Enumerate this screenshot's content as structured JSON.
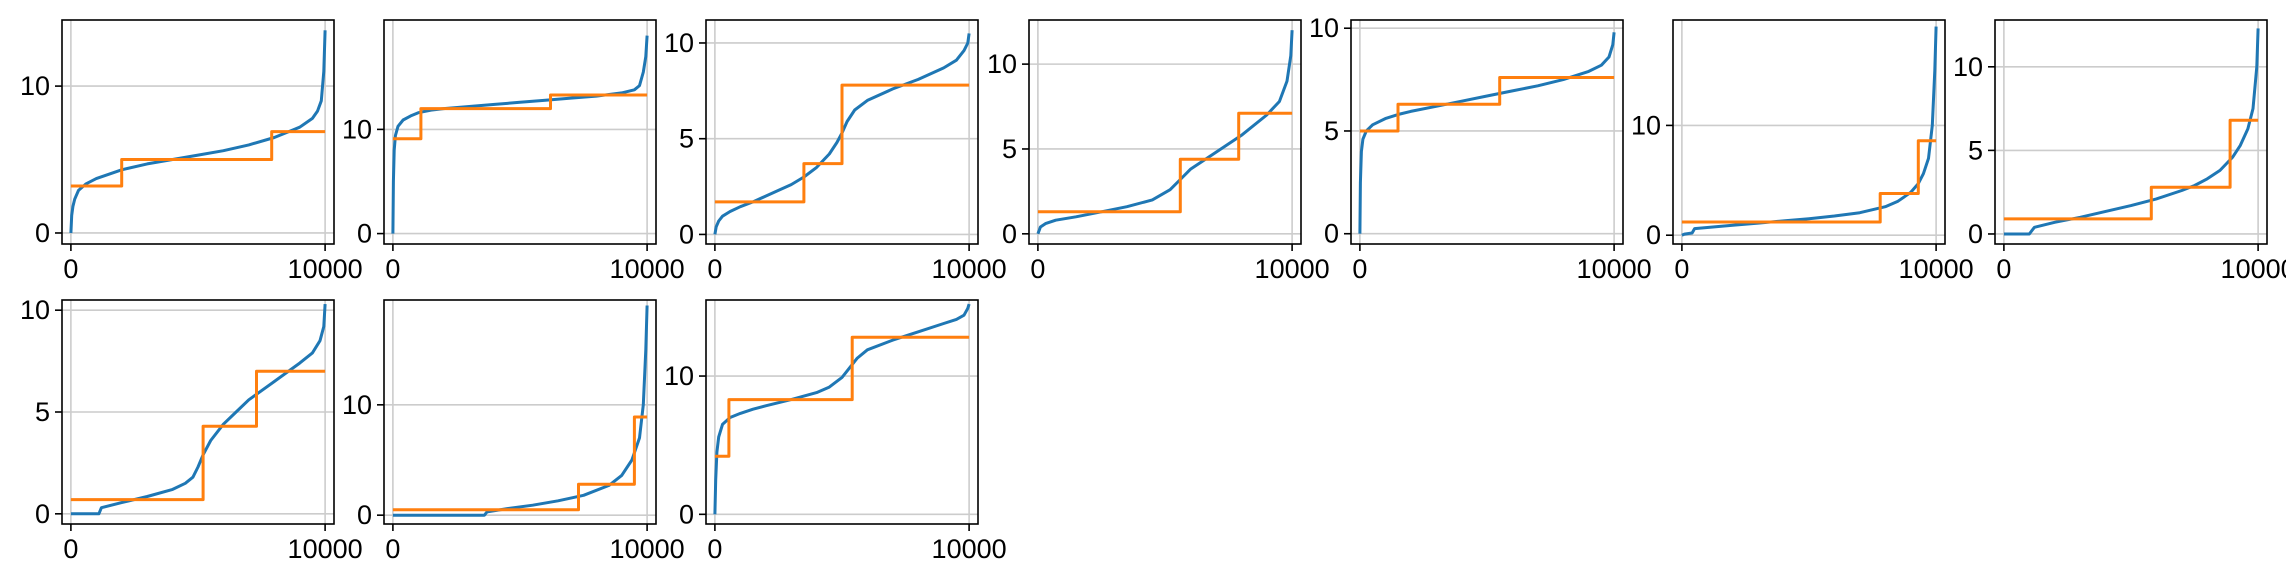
{
  "chart_data": [
    {
      "type": "line",
      "xlim": [
        -350,
        10350
      ],
      "ylim": [
        -0.75,
        14.5
      ],
      "xticks": [
        0,
        10000
      ],
      "xtick_labels": [
        "0",
        "10000"
      ],
      "yticks": [
        0,
        10
      ],
      "ytick_labels": [
        "0",
        "10"
      ],
      "grid": true,
      "series": [
        {
          "color": "#1f77b4",
          "step": false,
          "x": [
            0,
            30,
            80,
            150,
            300,
            600,
            1000,
            1500,
            2000,
            3000,
            4000,
            5000,
            6000,
            7000,
            8000,
            9000,
            9500,
            9700,
            9850,
            9950,
            10000
          ],
          "y": [
            0,
            1.2,
            1.8,
            2.3,
            2.9,
            3.35,
            3.7,
            4.0,
            4.3,
            4.7,
            5.0,
            5.3,
            5.6,
            6.0,
            6.5,
            7.2,
            7.8,
            8.3,
            9.0,
            11.0,
            13.8
          ]
        },
        {
          "color": "#ff7f0e",
          "step": true,
          "x": [
            0,
            2000,
            7900,
            10000
          ],
          "y": [
            3.2,
            5.0,
            6.9,
            6.9
          ]
        }
      ]
    },
    {
      "type": "line",
      "xlim": [
        -350,
        10350
      ],
      "ylim": [
        -1,
        20.5
      ],
      "xticks": [
        0,
        10000
      ],
      "xtick_labels": [
        "0",
        "10000"
      ],
      "yticks": [
        0,
        10
      ],
      "ytick_labels": [
        "0",
        "10"
      ],
      "grid": true,
      "series": [
        {
          "color": "#1f77b4",
          "step": false,
          "x": [
            0,
            20,
            50,
            100,
            200,
            400,
            700,
            1000,
            1500,
            2000,
            3000,
            4000,
            5000,
            6000,
            7000,
            8000,
            9000,
            9500,
            9700,
            9850,
            9950,
            10000
          ],
          "y": [
            0,
            5,
            8,
            9.4,
            10.3,
            10.9,
            11.3,
            11.6,
            11.85,
            12.0,
            12.2,
            12.4,
            12.6,
            12.8,
            13.0,
            13.2,
            13.5,
            13.8,
            14.2,
            15.5,
            17.0,
            19.0
          ]
        },
        {
          "color": "#ff7f0e",
          "step": true,
          "x": [
            0,
            1100,
            6200,
            10000
          ],
          "y": [
            9.1,
            12.0,
            13.3,
            13.3
          ]
        }
      ]
    },
    {
      "type": "line",
      "xlim": [
        -350,
        10350
      ],
      "ylim": [
        -0.5,
        11.2
      ],
      "xticks": [
        0,
        10000
      ],
      "xtick_labels": [
        "0",
        "10000"
      ],
      "yticks": [
        0,
        5,
        10
      ],
      "ytick_labels": [
        "0",
        "5",
        "10"
      ],
      "grid": true,
      "series": [
        {
          "color": "#1f77b4",
          "step": false,
          "x": [
            0,
            50,
            150,
            300,
            600,
            1000,
            1500,
            2000,
            2500,
            3000,
            3500,
            4000,
            4500,
            4800,
            5000,
            5200,
            5500,
            6000,
            7000,
            8000,
            9000,
            9500,
            9800,
            9950,
            10000
          ],
          "y": [
            0,
            0.4,
            0.7,
            0.95,
            1.2,
            1.45,
            1.7,
            2.0,
            2.3,
            2.6,
            3.0,
            3.5,
            4.2,
            4.8,
            5.3,
            5.9,
            6.5,
            7.0,
            7.6,
            8.1,
            8.7,
            9.1,
            9.6,
            10.0,
            10.5
          ]
        },
        {
          "color": "#ff7f0e",
          "step": true,
          "x": [
            0,
            3500,
            5000,
            10000
          ],
          "y": [
            1.7,
            3.7,
            7.8,
            7.8
          ]
        }
      ]
    },
    {
      "type": "line",
      "xlim": [
        -350,
        10350
      ],
      "ylim": [
        -0.6,
        12.6
      ],
      "xticks": [
        0,
        10000
      ],
      "xtick_labels": [
        "0",
        "10000"
      ],
      "yticks": [
        0,
        5,
        10
      ],
      "ytick_labels": [
        "0",
        "5",
        "10"
      ],
      "grid": true,
      "series": [
        {
          "color": "#1f77b4",
          "step": false,
          "x": [
            0,
            50,
            100,
            300,
            700,
            1500,
            2500,
            3500,
            4500,
            5200,
            5600,
            6000,
            7000,
            8000,
            9000,
            9500,
            9800,
            9950,
            10000
          ],
          "y": [
            0,
            0.2,
            0.4,
            0.6,
            0.8,
            1.0,
            1.3,
            1.6,
            2.0,
            2.6,
            3.2,
            3.8,
            4.8,
            5.8,
            7.0,
            7.8,
            9.0,
            10.5,
            12.0
          ]
        },
        {
          "color": "#ff7f0e",
          "step": true,
          "x": [
            0,
            5600,
            7900,
            10000
          ],
          "y": [
            1.3,
            4.4,
            7.1,
            7.1
          ]
        }
      ]
    },
    {
      "type": "line",
      "xlim": [
        -350,
        10350
      ],
      "ylim": [
        -0.5,
        10.4
      ],
      "xticks": [
        0,
        10000
      ],
      "xtick_labels": [
        "0",
        "10000"
      ],
      "yticks": [
        0,
        5,
        10
      ],
      "ytick_labels": [
        "0",
        "5",
        "10"
      ],
      "grid": true,
      "series": [
        {
          "color": "#1f77b4",
          "step": false,
          "x": [
            0,
            20,
            60,
            120,
            250,
            500,
            1000,
            1500,
            2000,
            3000,
            4000,
            5000,
            6000,
            7000,
            8000,
            9000,
            9500,
            9800,
            9950,
            10000
          ],
          "y": [
            0,
            2.5,
            4.0,
            4.6,
            5.0,
            5.3,
            5.6,
            5.8,
            5.95,
            6.2,
            6.45,
            6.7,
            6.95,
            7.2,
            7.5,
            7.9,
            8.2,
            8.6,
            9.2,
            9.8
          ]
        },
        {
          "color": "#ff7f0e",
          "step": true,
          "x": [
            0,
            1500,
            5500,
            10000
          ],
          "y": [
            5.0,
            6.3,
            7.6,
            7.6
          ]
        }
      ]
    },
    {
      "type": "line",
      "xlim": [
        -350,
        10350
      ],
      "ylim": [
        -0.8,
        19.6
      ],
      "xticks": [
        0,
        10000
      ],
      "xtick_labels": [
        "0",
        "10000"
      ],
      "yticks": [
        0,
        10
      ],
      "ytick_labels": [
        "0",
        "10"
      ],
      "grid": true,
      "series": [
        {
          "color": "#1f77b4",
          "step": false,
          "x": [
            0,
            100,
            400,
            500,
            1000,
            2000,
            3000,
            4000,
            5000,
            6000,
            7000,
            8000,
            8500,
            9000,
            9300,
            9500,
            9700,
            9850,
            9950,
            10000
          ],
          "y": [
            0,
            0.1,
            0.2,
            0.6,
            0.7,
            0.9,
            1.1,
            1.3,
            1.5,
            1.75,
            2.05,
            2.6,
            3.1,
            3.9,
            4.7,
            5.6,
            7.0,
            10.0,
            15.0,
            19.0
          ]
        },
        {
          "color": "#ff7f0e",
          "step": true,
          "x": [
            0,
            7800,
            9300,
            10000
          ],
          "y": [
            1.2,
            3.8,
            8.6,
            8.6
          ]
        }
      ]
    },
    {
      "type": "line",
      "xlim": [
        -350,
        10350
      ],
      "ylim": [
        -0.6,
        12.8
      ],
      "xticks": [
        0,
        10000
      ],
      "xtick_labels": [
        "0",
        "10000"
      ],
      "yticks": [
        0,
        5,
        10
      ],
      "ytick_labels": [
        "0",
        "5",
        "10"
      ],
      "grid": true,
      "series": [
        {
          "color": "#1f77b4",
          "step": false,
          "x": [
            0,
            1000,
            1200,
            2000,
            3000,
            4000,
            5000,
            6000,
            7000,
            7500,
            8000,
            8500,
            9000,
            9300,
            9600,
            9800,
            9950,
            10000
          ],
          "y": [
            0,
            0,
            0.4,
            0.7,
            1.0,
            1.35,
            1.7,
            2.1,
            2.6,
            2.9,
            3.3,
            3.8,
            4.6,
            5.3,
            6.3,
            7.5,
            10.0,
            12.3
          ]
        },
        {
          "color": "#ff7f0e",
          "step": true,
          "x": [
            0,
            5800,
            8900,
            10000
          ],
          "y": [
            0.9,
            2.8,
            6.8,
            6.8
          ]
        }
      ]
    },
    {
      "type": "line",
      "xlim": [
        -350,
        10350
      ],
      "ylim": [
        -0.5,
        10.5
      ],
      "xticks": [
        0,
        10000
      ],
      "xtick_labels": [
        "0",
        "10000"
      ],
      "yticks": [
        0,
        5,
        10
      ],
      "ytick_labels": [
        "0",
        "5",
        "10"
      ],
      "grid": true,
      "series": [
        {
          "color": "#1f77b4",
          "step": false,
          "x": [
            0,
            1100,
            1200,
            2000,
            3000,
            4000,
            4500,
            4800,
            5000,
            5200,
            5500,
            6000,
            6500,
            7000,
            8000,
            9000,
            9500,
            9800,
            9950,
            10000
          ],
          "y": [
            0,
            0,
            0.3,
            0.55,
            0.85,
            1.2,
            1.5,
            1.8,
            2.3,
            2.9,
            3.6,
            4.4,
            5.0,
            5.6,
            6.5,
            7.4,
            7.9,
            8.5,
            9.2,
            10.3
          ]
        },
        {
          "color": "#ff7f0e",
          "step": true,
          "x": [
            0,
            5200,
            7300,
            10000
          ],
          "y": [
            0.7,
            4.3,
            7.0,
            7.0
          ]
        }
      ]
    },
    {
      "type": "line",
      "xlim": [
        -350,
        10350
      ],
      "ylim": [
        -0.8,
        19.5
      ],
      "xticks": [
        0,
        10000
      ],
      "xtick_labels": [
        "0",
        "10000"
      ],
      "yticks": [
        0,
        10
      ],
      "ytick_labels": [
        "0",
        "10"
      ],
      "grid": true,
      "series": [
        {
          "color": "#1f77b4",
          "step": false,
          "x": [
            0,
            3600,
            3700,
            4500,
            5500,
            6500,
            7500,
            8500,
            9000,
            9400,
            9700,
            9850,
            9950,
            10000
          ],
          "y": [
            0,
            0,
            0.3,
            0.6,
            0.9,
            1.3,
            1.8,
            2.7,
            3.6,
            5.0,
            7.0,
            10.0,
            15.0,
            19.0
          ]
        },
        {
          "color": "#ff7f0e",
          "step": true,
          "x": [
            0,
            7300,
            9500,
            10000
          ],
          "y": [
            0.5,
            2.8,
            8.9,
            8.9
          ]
        }
      ]
    },
    {
      "type": "line",
      "xlim": [
        -350,
        10350
      ],
      "ylim": [
        -0.7,
        15.5
      ],
      "xticks": [
        0,
        10000
      ],
      "xtick_labels": [
        "0",
        "10000"
      ],
      "yticks": [
        0,
        10
      ],
      "ytick_labels": [
        "0",
        "10"
      ],
      "grid": true,
      "series": [
        {
          "color": "#1f77b4",
          "step": false,
          "x": [
            0,
            30,
            80,
            150,
            300,
            600,
            1000,
            1500,
            2000,
            3000,
            4000,
            4500,
            5000,
            5300,
            5600,
            6000,
            7000,
            8000,
            9000,
            9500,
            9800,
            9950,
            10000
          ],
          "y": [
            0,
            2.5,
            4.5,
            5.6,
            6.5,
            7.0,
            7.3,
            7.6,
            7.85,
            8.3,
            8.8,
            9.2,
            9.9,
            10.6,
            11.3,
            11.9,
            12.6,
            13.2,
            13.8,
            14.1,
            14.4,
            14.9,
            15.2
          ]
        },
        {
          "color": "#ff7f0e",
          "step": true,
          "x": [
            0,
            550,
            5400,
            10000
          ],
          "y": [
            4.2,
            8.3,
            12.8,
            12.8
          ]
        }
      ]
    }
  ]
}
